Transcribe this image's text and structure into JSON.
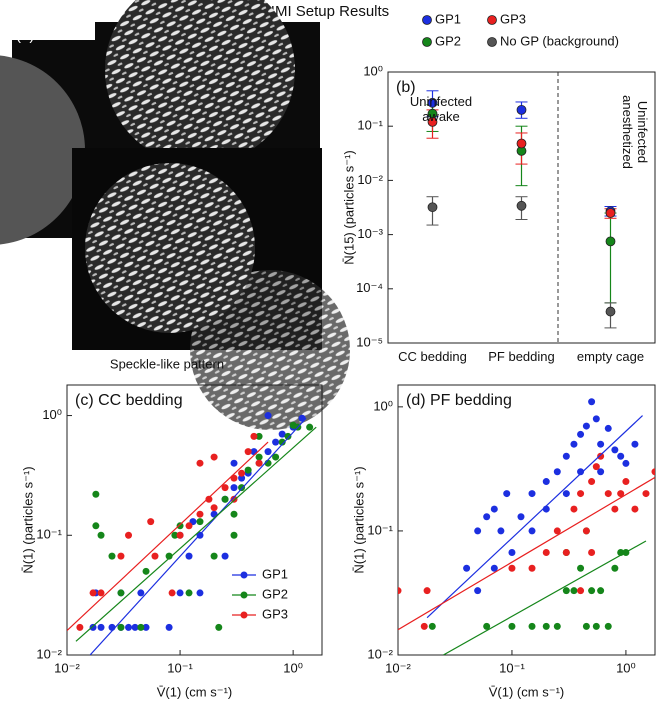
{
  "title": "IMI Setup Results",
  "panel_a": {
    "label": "(a)",
    "caption": "Speckle-like pattern"
  },
  "chart_data": [
    {
      "type": "dot",
      "title": "(b)",
      "ylabel": "N̄(15) (particles s⁻¹)",
      "log_y": true,
      "categories": [
        "CC bedding",
        "PF bedding",
        "empty cage"
      ],
      "annotations": [
        "Uninfected awake",
        "Uninfected anesthetized"
      ],
      "ylim": [
        1e-05,
        1
      ],
      "yticks": [
        {
          "value": 1e-05,
          "label": "10⁻⁵"
        },
        {
          "value": 0.0001,
          "label": "10⁻⁴"
        },
        {
          "value": 0.001,
          "label": "10⁻³"
        },
        {
          "value": 0.01,
          "label": "10⁻²"
        },
        {
          "value": 0.1,
          "label": "10⁻¹"
        },
        {
          "value": 1,
          "label": "10⁰"
        }
      ],
      "series": [
        {
          "name": "GP1",
          "color": "#1c2fe0",
          "values": [
            0.27,
            0.2,
            0.0027
          ],
          "lower": [
            0.15,
            0.14,
            0.0022
          ],
          "upper": [
            0.45,
            0.28,
            0.0033
          ]
        },
        {
          "name": "GP2",
          "color": "#15861a",
          "values": [
            0.17,
            0.035,
            0.00075
          ],
          "lower": [
            0.08,
            0.008,
            5.5e-05
          ],
          "upper": [
            0.25,
            0.1,
            0.0025
          ]
        },
        {
          "name": "GP3",
          "color": "#e82020",
          "values": [
            0.12,
            0.048,
            0.0025
          ],
          "lower": [
            0.06,
            0.02,
            0.002
          ],
          "upper": [
            0.2,
            0.075,
            0.003
          ]
        },
        {
          "name": "No GP (background)",
          "color": "#555555",
          "values": [
            0.0032,
            0.0034,
            3.8e-05
          ],
          "lower": [
            0.0015,
            0.0019,
            1.9e-05
          ],
          "upper": [
            0.005,
            0.005,
            5.5e-05
          ]
        }
      ]
    },
    {
      "type": "scatter",
      "title": "(c) CC bedding",
      "xlabel": "V̄(1) (cm s⁻¹)",
      "ylabel": "N̄(1) (particles s⁻¹)",
      "log_x": true,
      "log_y": true,
      "xlim": [
        0.01,
        1.8
      ],
      "ylim": [
        0.01,
        1.8
      ],
      "xticks": [
        {
          "value": 0.01,
          "label": "10⁻²"
        },
        {
          "value": 0.1,
          "label": "10⁻¹"
        },
        {
          "value": 1,
          "label": "10⁰"
        }
      ],
      "yticks": [
        {
          "value": 0.01,
          "label": "10⁻²"
        },
        {
          "value": 0.1,
          "label": "10⁻¹"
        },
        {
          "value": 1,
          "label": "10⁰"
        }
      ],
      "legend": "lower right",
      "series": [
        {
          "name": "GP1",
          "color": "#1c2fe0",
          "x": [
            0.017,
            0.02,
            0.025,
            0.03,
            0.035,
            0.04,
            0.05,
            0.018,
            0.03,
            0.045,
            0.08,
            0.1,
            0.12,
            0.1,
            0.15,
            0.13,
            0.2,
            0.25,
            0.3,
            0.35,
            0.4,
            0.5,
            0.6,
            0.45,
            0.7,
            0.8,
            1.0,
            1.2,
            0.6,
            0.3,
            0.25,
            0.15
          ],
          "values": [
            0.017,
            0.017,
            0.017,
            0.017,
            0.017,
            0.017,
            0.017,
            0.033,
            0.033,
            0.033,
            0.017,
            0.033,
            0.067,
            0.1,
            0.1,
            0.13,
            0.15,
            0.2,
            0.25,
            0.3,
            0.33,
            0.4,
            0.5,
            0.5,
            0.6,
            0.7,
            0.8,
            0.95,
            1.0,
            0.4,
            0.067,
            0.033
          ],
          "fit_x": [
            0.016,
            1.3
          ],
          "fit_y": [
            0.01,
            0.95
          ]
        },
        {
          "name": "GP2",
          "color": "#15861a",
          "x": [
            0.018,
            0.018,
            0.02,
            0.025,
            0.03,
            0.03,
            0.045,
            0.05,
            0.08,
            0.09,
            0.1,
            0.15,
            0.2,
            0.22,
            0.3,
            0.25,
            0.35,
            0.4,
            0.5,
            0.6,
            0.7,
            0.8,
            0.9,
            1.0,
            1.1,
            1.4,
            0.5,
            0.3,
            0.12
          ],
          "values": [
            0.22,
            0.12,
            0.1,
            0.067,
            0.033,
            0.017,
            0.017,
            0.05,
            0.067,
            0.1,
            0.12,
            0.13,
            0.067,
            0.017,
            0.1,
            0.2,
            0.25,
            0.35,
            0.45,
            0.4,
            0.45,
            0.6,
            0.67,
            0.83,
            0.8,
            0.8,
            0.67,
            0.15,
            0.033
          ],
          "fit_x": [
            0.012,
            1.6
          ],
          "fit_y": [
            0.013,
            0.8
          ]
        },
        {
          "name": "GP3",
          "color": "#e82020",
          "x": [
            0.013,
            0.017,
            0.02,
            0.03,
            0.035,
            0.055,
            0.06,
            0.085,
            0.1,
            0.12,
            0.15,
            0.18,
            0.2,
            0.2,
            0.25,
            0.3,
            0.35,
            0.4,
            0.45,
            0.5,
            0.15,
            0.3
          ],
          "values": [
            0.017,
            0.033,
            0.033,
            0.067,
            0.1,
            0.13,
            0.067,
            0.033,
            0.1,
            0.12,
            0.15,
            0.2,
            0.45,
            0.17,
            0.25,
            0.3,
            0.33,
            0.5,
            0.67,
            0.4,
            0.4,
            0.2
          ],
          "fit_x": [
            0.01,
            0.6
          ],
          "fit_y": [
            0.016,
            0.6
          ]
        }
      ]
    },
    {
      "type": "scatter",
      "title": "(d) PF bedding",
      "xlabel": "V̄(1) (cm s⁻¹)",
      "ylabel": "N̄(1) (particles s⁻¹)",
      "log_x": true,
      "log_y": true,
      "xlim": [
        0.01,
        1.8
      ],
      "ylim": [
        0.01,
        1.5
      ],
      "xticks": [
        {
          "value": 0.01,
          "label": "10⁻²"
        },
        {
          "value": 0.1,
          "label": "10⁻¹"
        },
        {
          "value": 1,
          "label": "10⁰"
        }
      ],
      "yticks": [
        {
          "value": 0.01,
          "label": "10⁻²"
        },
        {
          "value": 0.1,
          "label": "10⁻¹"
        },
        {
          "value": 1,
          "label": "10⁰"
        }
      ],
      "series": [
        {
          "name": "GP1",
          "color": "#1c2fe0",
          "x": [
            0.04,
            0.05,
            0.06,
            0.07,
            0.08,
            0.09,
            0.1,
            0.12,
            0.15,
            0.15,
            0.2,
            0.2,
            0.25,
            0.3,
            0.3,
            0.35,
            0.4,
            0.4,
            0.45,
            0.5,
            0.55,
            0.6,
            0.7,
            0.8,
            0.9,
            1.0,
            1.2,
            0.6,
            0.07,
            0.05
          ],
          "values": [
            0.05,
            0.1,
            0.13,
            0.15,
            0.1,
            0.2,
            0.067,
            0.13,
            0.2,
            0.1,
            0.25,
            0.15,
            0.3,
            0.2,
            0.4,
            0.5,
            0.3,
            0.6,
            0.7,
            1.1,
            0.8,
            0.5,
            0.67,
            0.45,
            0.4,
            0.35,
            0.5,
            0.3,
            0.05,
            0.033
          ],
          "fit_x": [
            0.018,
            1.4
          ],
          "fit_y": [
            0.02,
            0.85
          ]
        },
        {
          "name": "GP2",
          "color": "#15861a",
          "x": [
            0.02,
            0.06,
            0.1,
            0.15,
            0.2,
            0.25,
            0.3,
            0.35,
            0.4,
            0.45,
            0.5,
            0.55,
            0.6,
            0.7,
            0.8,
            0.9,
            1.0,
            0.3,
            0.45
          ],
          "values": [
            0.017,
            0.017,
            0.017,
            0.017,
            0.017,
            0.017,
            0.033,
            0.033,
            0.05,
            0.017,
            0.033,
            0.017,
            0.033,
            0.017,
            0.05,
            0.067,
            0.067,
            0.067,
            0.1
          ],
          "fit_x": [
            0.025,
            1.5
          ],
          "fit_y": [
            0.01,
            0.083
          ]
        },
        {
          "name": "GP3",
          "color": "#e82020",
          "x": [
            0.01,
            0.017,
            0.018,
            0.1,
            0.15,
            0.2,
            0.25,
            0.3,
            0.35,
            0.4,
            0.45,
            0.5,
            0.55,
            0.6,
            0.7,
            0.8,
            0.9,
            1.0,
            1.2,
            1.5,
            1.8,
            0.5,
            0.4
          ],
          "values": [
            0.033,
            0.017,
            0.033,
            0.05,
            0.05,
            0.067,
            0.1,
            0.067,
            0.15,
            0.2,
            0.1,
            0.25,
            0.33,
            0.4,
            0.2,
            0.15,
            0.2,
            0.25,
            0.15,
            0.2,
            0.3,
            0.067,
            0.033
          ],
          "fit_x": [
            0.01,
            1.8
          ],
          "fit_y": [
            0.016,
            0.27
          ]
        }
      ]
    }
  ]
}
